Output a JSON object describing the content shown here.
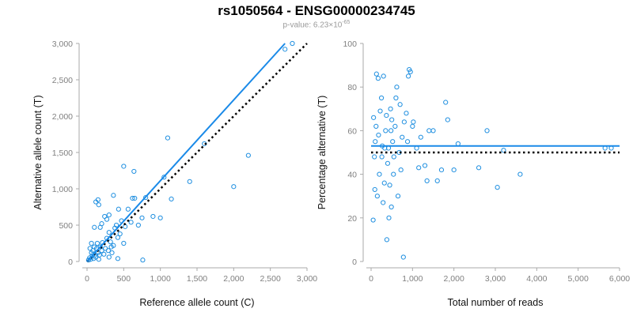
{
  "title": "rs1050564 - ENSG00000234745",
  "subtitle": {
    "prefix": "p-value: 6.23×10",
    "exponent": "-65"
  },
  "colors": {
    "points": "#1f8fe0",
    "fit": "#1a8ae8",
    "reference": "#000000",
    "axis": "#aaaaaa"
  },
  "chart_data": [
    {
      "type": "scatter",
      "xlabel": "Reference allele count (C)",
      "ylabel": "Alternative allele count (T)",
      "xlim": [
        0,
        3000
      ],
      "ylim": [
        0,
        3000
      ],
      "xticks": [
        "0",
        "500",
        "1,000",
        "1,500",
        "2,000",
        "2,500",
        "3,000"
      ],
      "yticks": [
        "0",
        "500",
        "1,000",
        "1,500",
        "2,000",
        "2,500",
        "3,000"
      ],
      "fit_line": [
        [
          0,
          0
        ],
        [
          2700,
          3000
        ]
      ],
      "reference_line": [
        [
          0,
          0
        ],
        [
          3000,
          3000
        ]
      ],
      "points": [
        [
          20,
          20
        ],
        [
          35,
          50
        ],
        [
          50,
          30
        ],
        [
          60,
          120
        ],
        [
          70,
          80
        ],
        [
          80,
          150
        ],
        [
          90,
          40
        ],
        [
          100,
          200
        ],
        [
          110,
          90
        ],
        [
          120,
          60
        ],
        [
          130,
          180
        ],
        [
          140,
          250
        ],
        [
          150,
          120
        ],
        [
          160,
          30
        ],
        [
          170,
          90
        ],
        [
          180,
          200
        ],
        [
          200,
          150
        ],
        [
          210,
          260
        ],
        [
          230,
          100
        ],
        [
          250,
          180
        ],
        [
          270,
          320
        ],
        [
          290,
          150
        ],
        [
          300,
          400
        ],
        [
          320,
          270
        ],
        [
          340,
          120
        ],
        [
          360,
          220
        ],
        [
          380,
          460
        ],
        [
          400,
          500
        ],
        [
          420,
          330
        ],
        [
          450,
          380
        ],
        [
          470,
          560
        ],
        [
          500,
          250
        ],
        [
          520,
          480
        ],
        [
          600,
          540
        ],
        [
          620,
          870
        ],
        [
          700,
          500
        ],
        [
          750,
          600
        ],
        [
          800,
          880
        ],
        [
          900,
          620
        ],
        [
          1000,
          600
        ],
        [
          1050,
          1160
        ],
        [
          1150,
          860
        ],
        [
          1400,
          1100
        ],
        [
          1600,
          1620
        ],
        [
          2000,
          1030
        ],
        [
          2200,
          1460
        ],
        [
          500,
          1310
        ],
        [
          640,
          1240
        ],
        [
          1100,
          1700
        ],
        [
          120,
          820
        ],
        [
          150,
          850
        ],
        [
          160,
          780
        ],
        [
          60,
          250
        ],
        [
          40,
          180
        ],
        [
          200,
          520
        ],
        [
          240,
          620
        ],
        [
          270,
          580
        ],
        [
          300,
          640
        ],
        [
          360,
          910
        ],
        [
          430,
          720
        ],
        [
          560,
          720
        ],
        [
          650,
          870
        ],
        [
          760,
          20
        ],
        [
          2700,
          2920
        ],
        [
          2800,
          3000
        ],
        [
          100,
          470
        ],
        [
          180,
          470
        ],
        [
          300,
          60
        ],
        [
          330,
          200
        ],
        [
          420,
          40
        ]
      ]
    },
    {
      "type": "scatter",
      "xlabel": "Total number of reads",
      "ylabel": "Percentage alternative (T)",
      "xlim": [
        0,
        6000
      ],
      "ylim": [
        0,
        100
      ],
      "xticks": [
        "0",
        "1,000",
        "2,000",
        "3,000",
        "4,000",
        "5,000",
        "6,000"
      ],
      "yticks": [
        "0",
        "20",
        "40",
        "60",
        "80",
        "100"
      ],
      "fit_line": [
        [
          0,
          53
        ],
        [
          6000,
          53
        ]
      ],
      "reference_line": [
        [
          0,
          50
        ],
        [
          6000,
          50
        ]
      ],
      "points": [
        [
          50,
          19
        ],
        [
          80,
          48
        ],
        [
          100,
          55
        ],
        [
          120,
          62
        ],
        [
          130,
          86
        ],
        [
          150,
          30
        ],
        [
          170,
          84
        ],
        [
          180,
          58
        ],
        [
          200,
          40
        ],
        [
          220,
          69
        ],
        [
          250,
          75
        ],
        [
          270,
          53
        ],
        [
          290,
          27
        ],
        [
          300,
          85
        ],
        [
          320,
          36
        ],
        [
          350,
          60
        ],
        [
          370,
          67
        ],
        [
          400,
          45
        ],
        [
          420,
          52
        ],
        [
          450,
          35
        ],
        [
          470,
          70
        ],
        [
          490,
          25
        ],
        [
          500,
          65
        ],
        [
          520,
          55
        ],
        [
          550,
          48
        ],
        [
          580,
          62
        ],
        [
          600,
          75
        ],
        [
          620,
          80
        ],
        [
          650,
          30
        ],
        [
          700,
          72
        ],
        [
          720,
          42
        ],
        [
          750,
          57
        ],
        [
          780,
          2
        ],
        [
          800,
          64
        ],
        [
          850,
          68
        ],
        [
          880,
          55
        ],
        [
          900,
          85
        ],
        [
          920,
          88
        ],
        [
          950,
          87
        ],
        [
          1000,
          62
        ],
        [
          1020,
          64
        ],
        [
          1100,
          52
        ],
        [
          1150,
          43
        ],
        [
          1200,
          57
        ],
        [
          1300,
          44
        ],
        [
          1350,
          37
        ],
        [
          1400,
          60
        ],
        [
          1500,
          60
        ],
        [
          1600,
          37
        ],
        [
          1700,
          42
        ],
        [
          1800,
          73
        ],
        [
          1850,
          65
        ],
        [
          2000,
          42
        ],
        [
          2100,
          54
        ],
        [
          2600,
          43
        ],
        [
          2800,
          60
        ],
        [
          3050,
          34
        ],
        [
          3200,
          51
        ],
        [
          3600,
          40
        ],
        [
          5650,
          52
        ],
        [
          5800,
          52
        ],
        [
          60,
          66
        ],
        [
          90,
          33
        ],
        [
          260,
          48
        ],
        [
          330,
          52
        ],
        [
          380,
          10
        ],
        [
          430,
          20
        ],
        [
          480,
          60
        ],
        [
          540,
          40
        ],
        [
          680,
          50
        ]
      ]
    }
  ]
}
